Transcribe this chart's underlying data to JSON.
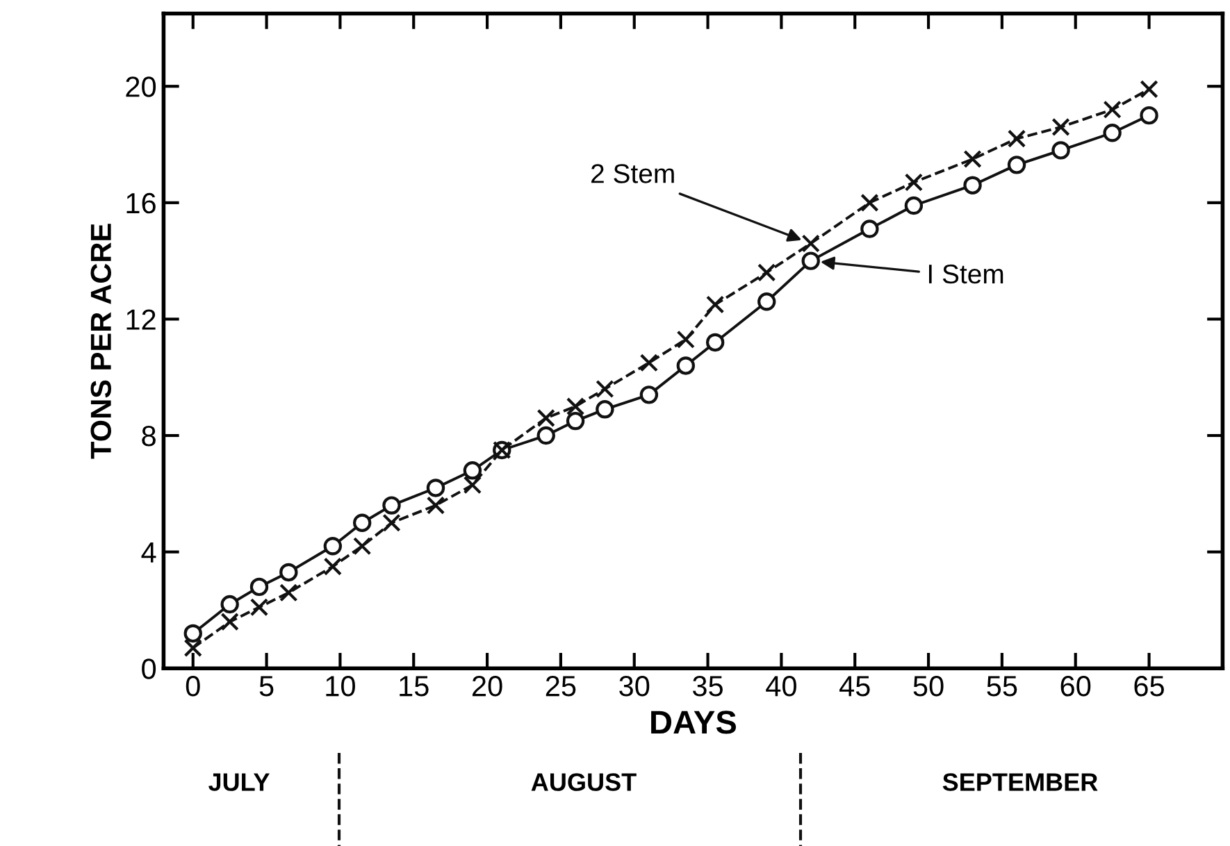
{
  "chart_data": {
    "type": "line",
    "xlabel": "DAYS",
    "ylabel": "TONS PER ACRE",
    "x": [
      0,
      2.5,
      4.5,
      6.5,
      9.5,
      11.5,
      13.5,
      16.5,
      19,
      21,
      24,
      26,
      28,
      31,
      33.5,
      35.5,
      39,
      42,
      46,
      49,
      53,
      56,
      59,
      62.5,
      65
    ],
    "series": [
      {
        "name": "I Stem",
        "color": "#111111",
        "marker": "circle",
        "line_style": "solid",
        "values": [
          1.2,
          2.2,
          2.8,
          3.3,
          4.2,
          5.0,
          5.6,
          6.2,
          6.8,
          7.5,
          8.0,
          8.5,
          8.9,
          9.4,
          10.4,
          11.2,
          12.6,
          14.0,
          15.1,
          15.9,
          16.6,
          17.3,
          17.8,
          18.4,
          19.0
        ]
      },
      {
        "name": "2 Stem",
        "color": "#111111",
        "marker": "cross",
        "line_style": "dashed",
        "values": [
          0.7,
          1.6,
          2.1,
          2.6,
          3.5,
          4.2,
          5.0,
          5.6,
          6.3,
          7.5,
          8.6,
          9.0,
          9.6,
          10.5,
          11.3,
          12.5,
          13.6,
          14.6,
          16.0,
          16.7,
          17.5,
          18.2,
          18.6,
          19.2,
          19.9
        ]
      }
    ],
    "xlim": [
      -2,
      70
    ],
    "ylim": [
      0,
      22.5
    ],
    "xticks": [
      0,
      5,
      10,
      15,
      20,
      25,
      30,
      35,
      40,
      45,
      50,
      55,
      60,
      65
    ],
    "yticks": [
      0,
      4,
      8,
      12,
      16,
      20
    ],
    "grid": false,
    "annotations": [
      "JULY",
      "AUGUST",
      "SEPTEMBER"
    ]
  }
}
